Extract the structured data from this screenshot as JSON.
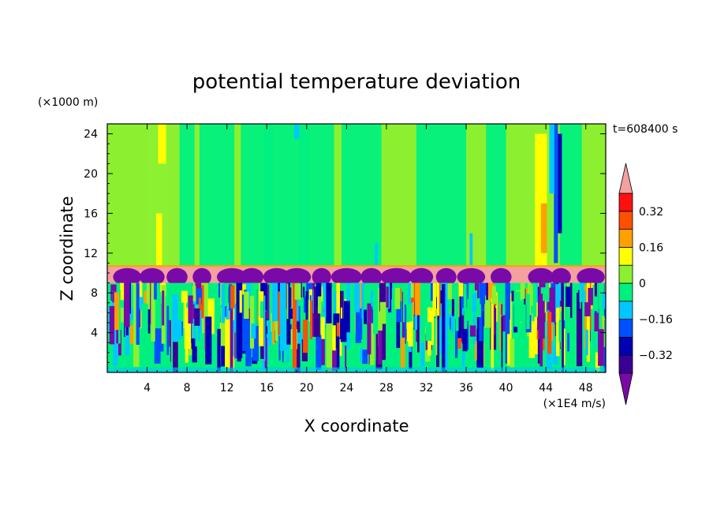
{
  "chart_data": {
    "type": "heatmap",
    "title": "potential temperature deviation",
    "xlabel": "X coordinate",
    "ylabel": "Z coordinate",
    "x_unit": "(×1E4 m/s)",
    "y_unit": "(×1000 m)",
    "time_label": "t=608400 s",
    "xlim": [
      0,
      50
    ],
    "ylim": [
      0,
      25
    ],
    "x_ticks": [
      "4",
      "8",
      "12",
      "16",
      "20",
      "24",
      "28",
      "32",
      "36",
      "40",
      "44",
      "48"
    ],
    "y_ticks": [
      "4",
      "8",
      "12",
      "16",
      "20",
      "24"
    ],
    "colorbar": {
      "labels": [
        "0.32",
        "0.16",
        "0",
        "−0.16",
        "−0.32"
      ],
      "label_values": [
        0.32,
        0.16,
        0,
        -0.16,
        -0.32
      ],
      "levels": [
        -0.4,
        -0.32,
        -0.24,
        -0.16,
        -0.08,
        0,
        0.08,
        0.16,
        0.24,
        0.32,
        0.4
      ],
      "bins": [
        {
          "range": "< -0.4",
          "color": "#7a0aa8"
        },
        {
          "range": "-0.4 to -0.32",
          "color": "#3a0096"
        },
        {
          "range": "-0.32 to -0.24",
          "color": "#0000b4"
        },
        {
          "range": "-0.24 to -0.16",
          "color": "#0050ff"
        },
        {
          "range": "-0.16 to -0.08",
          "color": "#00c8ff"
        },
        {
          "range": "-0.08 to 0",
          "color": "#00f080"
        },
        {
          "range": "0 to 0.08",
          "color": "#8cf030"
        },
        {
          "range": "0.08 to 0.16",
          "color": "#ffff00"
        },
        {
          "range": "0.16 to 0.24",
          "color": "#ffa000"
        },
        {
          "range": "0.24 to 0.32",
          "color": "#ff5000"
        },
        {
          "range": "0.32 to 0.4",
          "color": "#ff1010"
        },
        {
          "range": "> 0.4",
          "color": "#f4a0a0"
        }
      ]
    },
    "layers": [
      {
        "z_range": [
          10.7,
          25
        ],
        "description": "upper layer, values near 0 to 0.08",
        "dominant_color": "#8cf030"
      },
      {
        "z_range": [
          9.0,
          10.7
        ],
        "description": "inversion band, values > 0.4",
        "dominant_color": "#f4a0a0"
      },
      {
        "z_range": [
          0,
          9.0
        ],
        "description": "turbulent convective layer, full range",
        "dominant_color": "mixed"
      }
    ]
  }
}
